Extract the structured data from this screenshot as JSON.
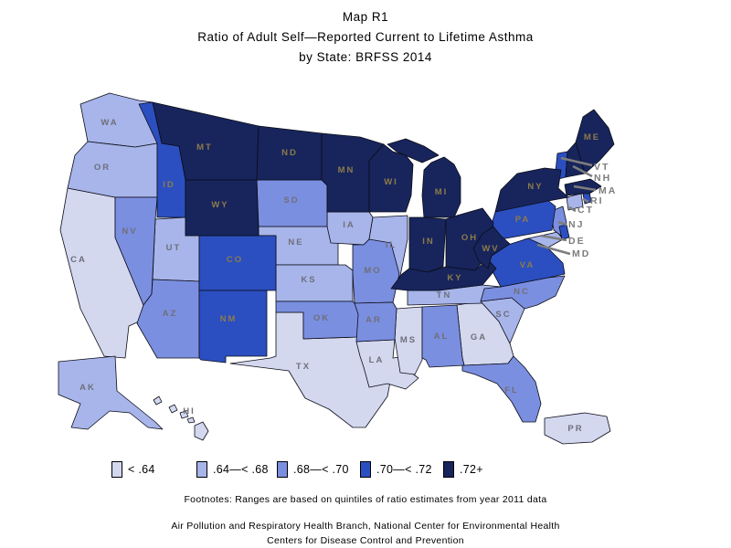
{
  "title": {
    "line1": "Map R1",
    "line2": "Ratio of Adult Self—Reported Current to Lifetime Asthma",
    "line3": "by State: BRFSS 2014"
  },
  "legend": {
    "items": [
      {
        "label": "< .64",
        "color": "#d3d8ef"
      },
      {
        "label": ".64—< .68",
        "color": "#a7b5ea"
      },
      {
        "label": ".68—< .70",
        "color": "#7b8fe0"
      },
      {
        "label": ".70—< .72",
        "color": "#2b4fc0"
      },
      {
        "label": ".72+",
        "color": "#17255c"
      }
    ]
  },
  "footnote": "Footnotes: Ranges are based on quintiles of ratio estimates from year 2011 data",
  "source_line1": "Air Pollution and Respiratory Health Branch, National Center for Environmental Health",
  "source_line2": "Centers for Disease Control and Prevention",
  "map": {
    "border_color": "#0c0c18",
    "label_color_light": "#6f6f7a",
    "label_color_dark": "#8d7b4a",
    "callout_color": "#7d7d7d",
    "states": [
      {
        "abbr": "CA",
        "class": 1
      },
      {
        "abbr": "TX",
        "class": 1
      },
      {
        "abbr": "LA",
        "class": 1
      },
      {
        "abbr": "MS",
        "class": 1
      },
      {
        "abbr": "GA",
        "class": 1
      },
      {
        "abbr": "HI",
        "class": 1
      },
      {
        "abbr": "PR",
        "class": 1
      },
      {
        "abbr": "WA",
        "class": 2
      },
      {
        "abbr": "OR",
        "class": 2
      },
      {
        "abbr": "UT",
        "class": 2
      },
      {
        "abbr": "NE",
        "class": 2
      },
      {
        "abbr": "KS",
        "class": 2
      },
      {
        "abbr": "IA",
        "class": 2
      },
      {
        "abbr": "IL",
        "class": 2
      },
      {
        "abbr": "TN",
        "class": 2
      },
      {
        "abbr": "SC",
        "class": 2
      },
      {
        "abbr": "MD",
        "class": 2
      },
      {
        "abbr": "CT",
        "class": 2
      },
      {
        "abbr": "AK",
        "class": 2
      },
      {
        "abbr": "NV",
        "class": 3
      },
      {
        "abbr": "AZ",
        "class": 3
      },
      {
        "abbr": "SD",
        "class": 3
      },
      {
        "abbr": "OK",
        "class": 3
      },
      {
        "abbr": "MO",
        "class": 3
      },
      {
        "abbr": "AR",
        "class": 3
      },
      {
        "abbr": "AL",
        "class": 3
      },
      {
        "abbr": "NC",
        "class": 3
      },
      {
        "abbr": "FL",
        "class": 3
      },
      {
        "abbr": "NJ",
        "class": 3
      },
      {
        "abbr": "ID",
        "class": 4
      },
      {
        "abbr": "CO",
        "class": 4
      },
      {
        "abbr": "NM",
        "class": 4
      },
      {
        "abbr": "PA",
        "class": 4
      },
      {
        "abbr": "VA",
        "class": 4
      },
      {
        "abbr": "VT",
        "class": 4
      },
      {
        "abbr": "RI",
        "class": 4
      },
      {
        "abbr": "DE",
        "class": 4
      },
      {
        "abbr": "MT",
        "class": 5
      },
      {
        "abbr": "WY",
        "class": 5
      },
      {
        "abbr": "ND",
        "class": 5
      },
      {
        "abbr": "MN",
        "class": 5
      },
      {
        "abbr": "WI",
        "class": 5
      },
      {
        "abbr": "MI",
        "class": 5
      },
      {
        "abbr": "IN",
        "class": 5
      },
      {
        "abbr": "OH",
        "class": 5
      },
      {
        "abbr": "KY",
        "class": 5
      },
      {
        "abbr": "WV",
        "class": 5
      },
      {
        "abbr": "NY",
        "class": 5
      },
      {
        "abbr": "ME",
        "class": 5
      },
      {
        "abbr": "NH",
        "class": 5
      },
      {
        "abbr": "MA",
        "class": 5
      }
    ],
    "callout_states": [
      "VT",
      "NH",
      "MA",
      "RI",
      "CT",
      "NJ",
      "DE",
      "MD"
    ]
  }
}
